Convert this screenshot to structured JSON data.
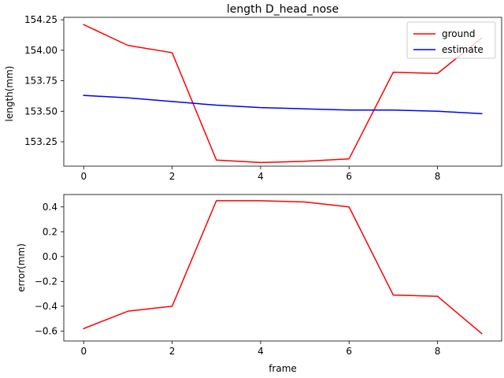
{
  "chart_data": [
    {
      "type": "line",
      "title": "length D_head_nose",
      "xlabel": "",
      "ylabel": "length(mm)",
      "x": [
        0,
        1,
        2,
        3,
        4,
        5,
        6,
        7,
        8,
        9
      ],
      "xlim": [
        -0.45,
        9.45
      ],
      "ylim": [
        153.05,
        154.27
      ],
      "xticks": [
        0,
        2,
        4,
        6,
        8
      ],
      "xtick_labels": [
        "0",
        "2",
        "4",
        "6",
        "8"
      ],
      "yticks": [
        153.25,
        153.5,
        153.75,
        154.0,
        154.25
      ],
      "ytick_labels": [
        "153.25",
        "153.50",
        "153.75",
        "154.00",
        "154.25"
      ],
      "legend_position": "top-right",
      "grid": false,
      "series": [
        {
          "name": "ground",
          "color": "#ff0000",
          "values": [
            154.21,
            154.04,
            153.98,
            153.1,
            153.08,
            153.09,
            153.11,
            153.82,
            153.81,
            154.1
          ]
        },
        {
          "name": "estimate",
          "color": "#0000ff",
          "values": [
            153.63,
            153.61,
            153.58,
            153.55,
            153.53,
            153.52,
            153.51,
            153.51,
            153.5,
            153.48
          ]
        }
      ]
    },
    {
      "type": "line",
      "title": "",
      "xlabel": "frame",
      "ylabel": "error(mm)",
      "x": [
        0,
        1,
        2,
        3,
        4,
        5,
        6,
        7,
        8,
        9
      ],
      "xlim": [
        -0.45,
        9.45
      ],
      "ylim": [
        -0.68,
        0.5
      ],
      "xticks": [
        0,
        2,
        4,
        6,
        8
      ],
      "xtick_labels": [
        "0",
        "2",
        "4",
        "6",
        "8"
      ],
      "yticks": [
        -0.6,
        -0.4,
        -0.2,
        0.0,
        0.2,
        0.4
      ],
      "ytick_labels": [
        "−0.6",
        "−0.4",
        "−0.2",
        "0.0",
        "0.2",
        "0.4"
      ],
      "legend_position": "none",
      "grid": false,
      "series": [
        {
          "color": "#ff0000",
          "values": [
            -0.58,
            -0.44,
            -0.4,
            0.45,
            0.45,
            0.44,
            0.4,
            -0.31,
            -0.32,
            -0.62
          ]
        }
      ]
    }
  ]
}
